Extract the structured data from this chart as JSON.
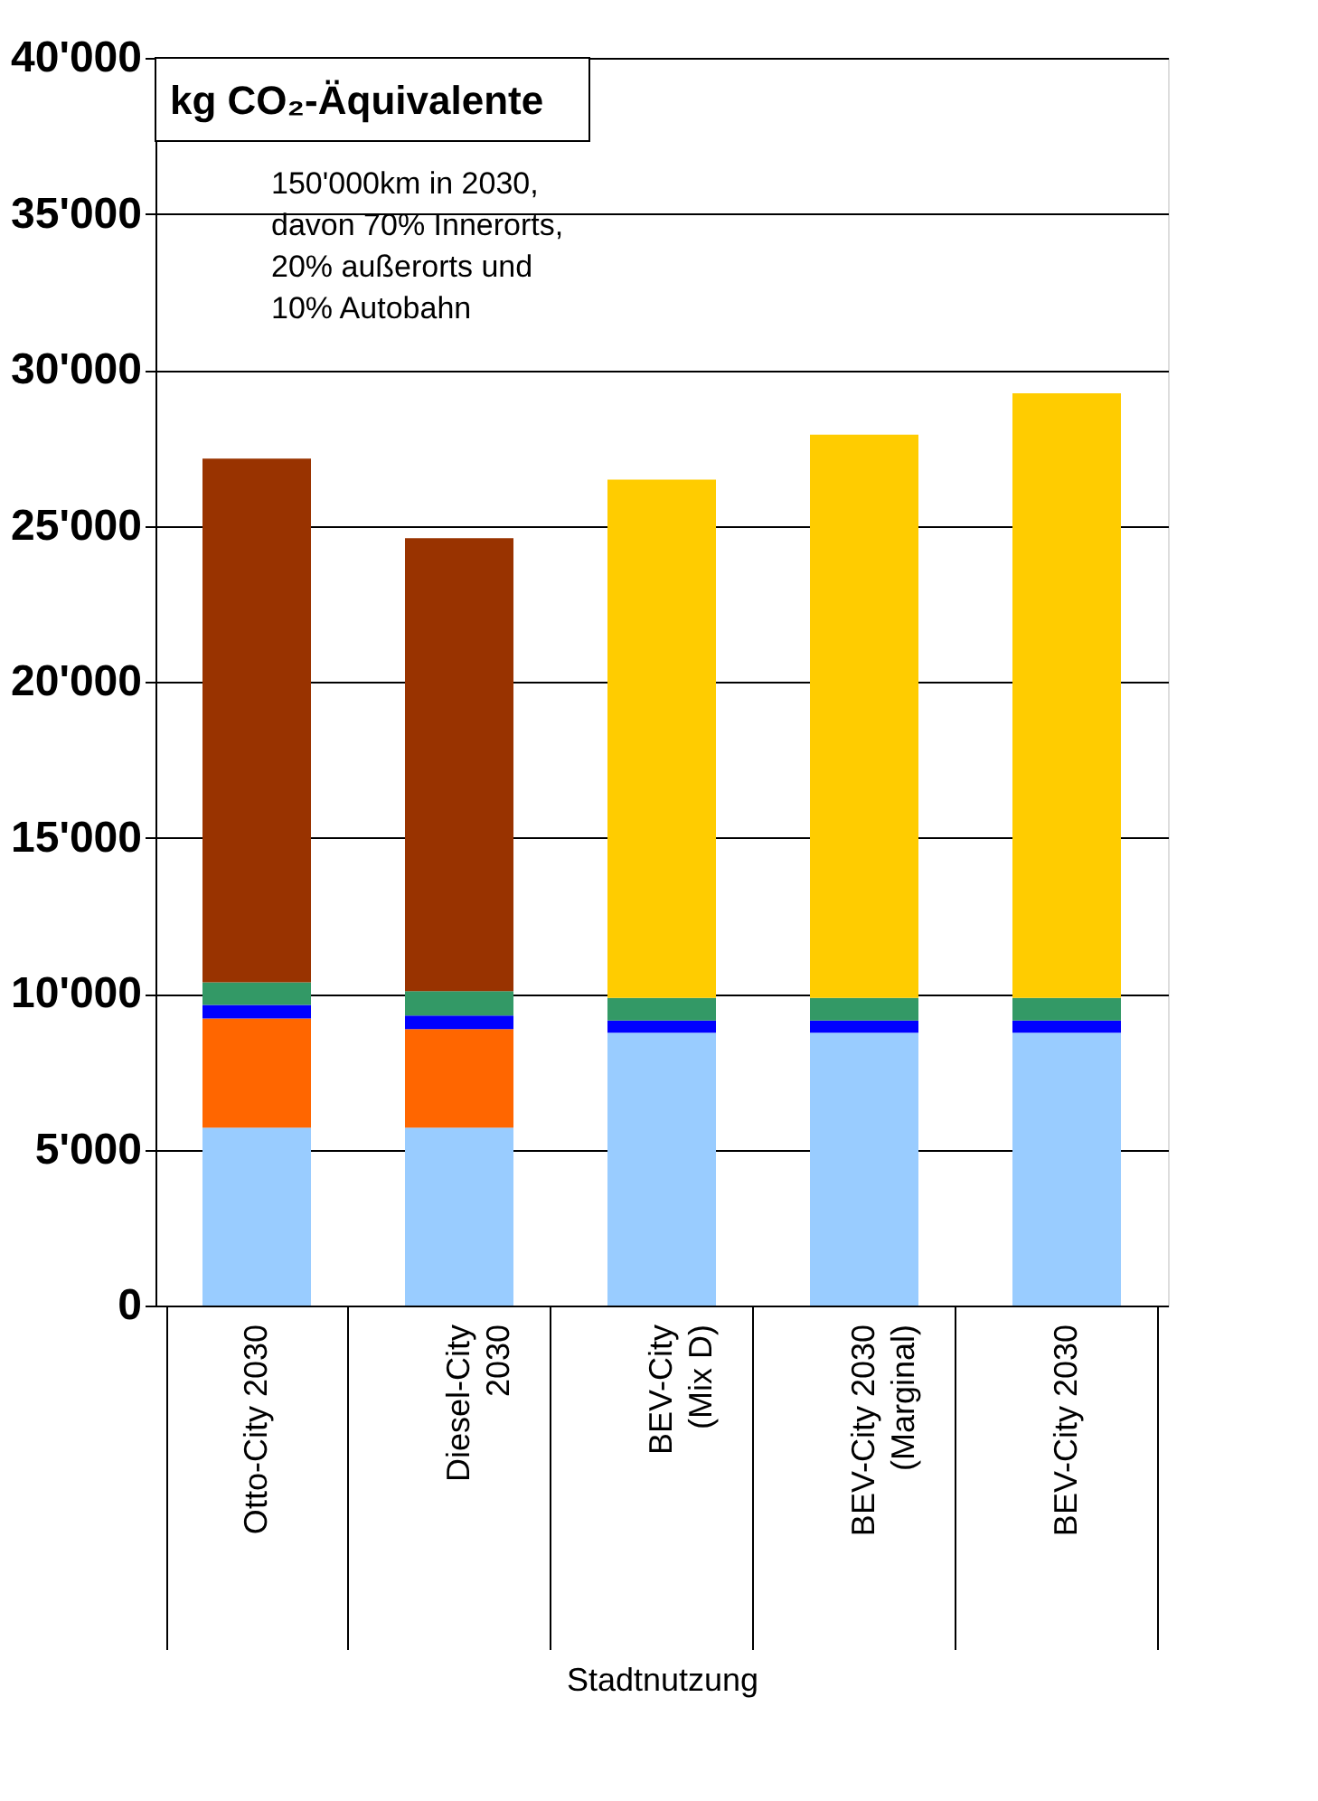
{
  "chart_data": {
    "type": "bar",
    "title": "kg CO₂-Äquivalente",
    "xlabel": "Stadtnutzung",
    "categories": [
      "Otto-City 2030",
      "Diesel-City\n2030",
      "BEV-City\n(Mix D)",
      "BEV-City 2030\n(Marginal)",
      "BEV-City 2030"
    ],
    "stacked": true,
    "series": [
      {
        "color": "#99ccff",
        "values": [
          5700,
          5700,
          8750,
          8750,
          8750
        ]
      },
      {
        "color": "#ff6600",
        "values": [
          3500,
          3160,
          null,
          null,
          null
        ]
      },
      {
        "color": "#0000ff",
        "values": [
          440,
          440,
          390,
          390,
          390
        ]
      },
      {
        "color": "#339966",
        "values": [
          720,
          780,
          720,
          720,
          720
        ]
      },
      {
        "color": "#993300",
        "values": [
          16790,
          14520,
          null,
          null,
          null
        ]
      },
      {
        "color": "#ffcc00",
        "values": [
          null,
          null,
          16620,
          18060,
          19390
        ]
      }
    ],
    "ylim": [
      0,
      40000
    ],
    "yticks": [
      {
        "value": 0,
        "label": "0"
      },
      {
        "value": 5000,
        "label": "5'000"
      },
      {
        "value": 10000,
        "label": "10'000"
      },
      {
        "value": 15000,
        "label": "15'000"
      },
      {
        "value": 20000,
        "label": "20'000"
      },
      {
        "value": 25000,
        "label": "25'000"
      },
      {
        "value": 30000,
        "label": "30'000"
      },
      {
        "value": 35000,
        "label": "35'000"
      },
      {
        "value": 40000,
        "label": "40'000"
      }
    ],
    "grid": "y",
    "annotations": [
      "150'000km in 2030,\ndavon 70% Innerorts,\n20% außerorts und\n10% Autobahn"
    ]
  }
}
